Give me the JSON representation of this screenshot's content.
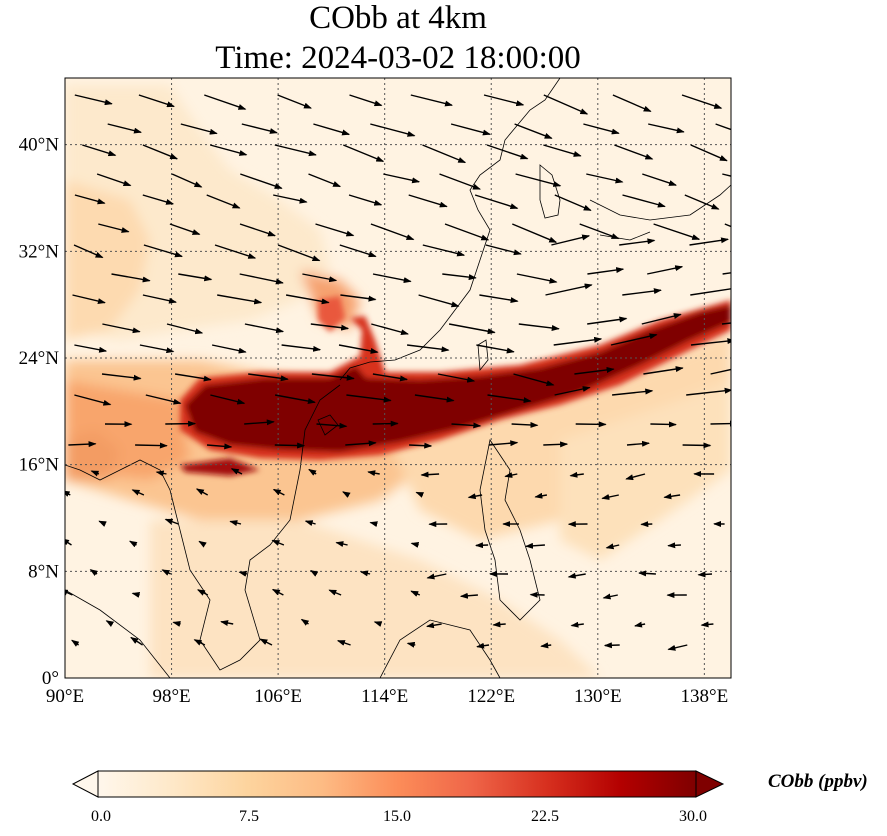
{
  "title": {
    "line1": "CObb at 4km",
    "line2": "Time: 2024-03-02 18:00:00"
  },
  "map": {
    "projection": "PlateCarree",
    "lon_range": [
      90,
      140
    ],
    "lat_range": [
      0,
      45
    ],
    "gridlines": "dotted",
    "x_ticks": [
      "90°E",
      "98°E",
      "106°E",
      "114°E",
      "122°E",
      "130°E",
      "138°E"
    ],
    "y_ticks": [
      "0°",
      "8°N",
      "16°N",
      "24°N",
      "32°N",
      "40°N"
    ],
    "wind_vectors": "black arrows, westerly in north, easterly/northeasterly in south"
  },
  "colorbar": {
    "title": "CObb (ppbv)",
    "colormap": "OrRd",
    "range": [
      0,
      30
    ],
    "extend": "both",
    "ticks": [
      "0.0",
      "7.5",
      "15.0",
      "22.5",
      "30.0"
    ],
    "colors": [
      "#fff7ec",
      "#fee8c8",
      "#fdd49e",
      "#fdbb84",
      "#fc8d59",
      "#ef6548",
      "#d7301f",
      "#b30000",
      "#7f0000"
    ]
  },
  "chart_data": {
    "type": "heatmap",
    "variable": "CObb",
    "units": "ppbv",
    "level": "4km",
    "time": "2024-03-02 18:00:00",
    "xlabel": "",
    "ylabel": "",
    "xlim": [
      90,
      140
    ],
    "ylim": [
      0,
      45
    ],
    "vmin": 0,
    "vmax": 30,
    "plume": {
      "core_lon_range": [
        99,
        140
      ],
      "core_lat_range": [
        17,
        28
      ],
      "max_value": 30
    }
  }
}
